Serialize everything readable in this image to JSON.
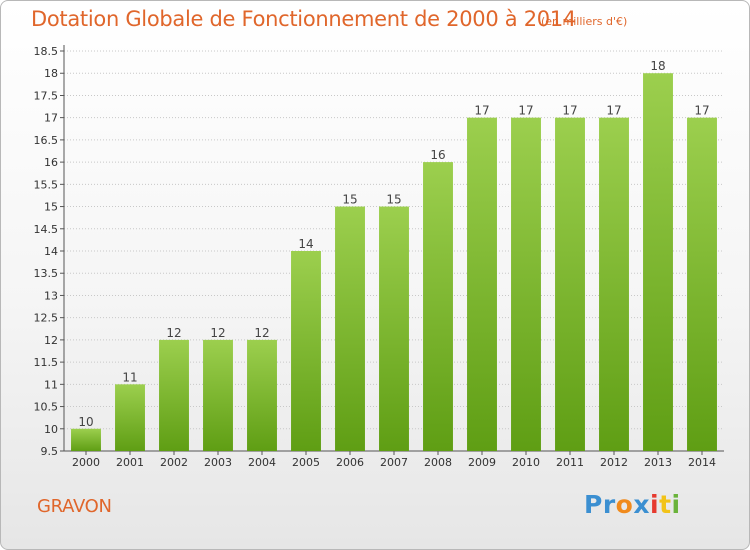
{
  "header": {
    "title": "Dotation Globale de Fonctionnement de 2000 à 2014",
    "subtitle": "(en milliers d'€)"
  },
  "footer": {
    "commune": "GRAVON",
    "logo_text": "Proxiti"
  },
  "colors": {
    "title": "#e0662b",
    "bar_top": "#9ccf4e",
    "bar_bottom": "#5f9e14",
    "grid": "#c8c8c8"
  },
  "chart_data": {
    "type": "bar",
    "title": "Dotation Globale de Fonctionnement de 2000 à 2014",
    "subtitle": "(en milliers d'€)",
    "categories": [
      "2000",
      "2001",
      "2002",
      "2003",
      "2004",
      "2005",
      "2006",
      "2007",
      "2008",
      "2009",
      "2010",
      "2011",
      "2012",
      "2013",
      "2014"
    ],
    "values": [
      10,
      11,
      12,
      12,
      12,
      14,
      15,
      15,
      16,
      17,
      17,
      17,
      17,
      18,
      17
    ],
    "labels": [
      "10",
      "11",
      "12",
      "12",
      "12",
      "14",
      "15",
      "15",
      "16",
      "17",
      "17",
      "17",
      "17",
      "18",
      "17"
    ],
    "ylim": [
      9.5,
      18.5
    ],
    "yticks": [
      9.5,
      10,
      10.5,
      11,
      11.5,
      12,
      12.5,
      13,
      13.5,
      14,
      14.5,
      15,
      15.5,
      16,
      16.5,
      17,
      17.5,
      18,
      18.5
    ],
    "grid": true,
    "legend": "none",
    "xlabel": "",
    "ylabel": ""
  }
}
